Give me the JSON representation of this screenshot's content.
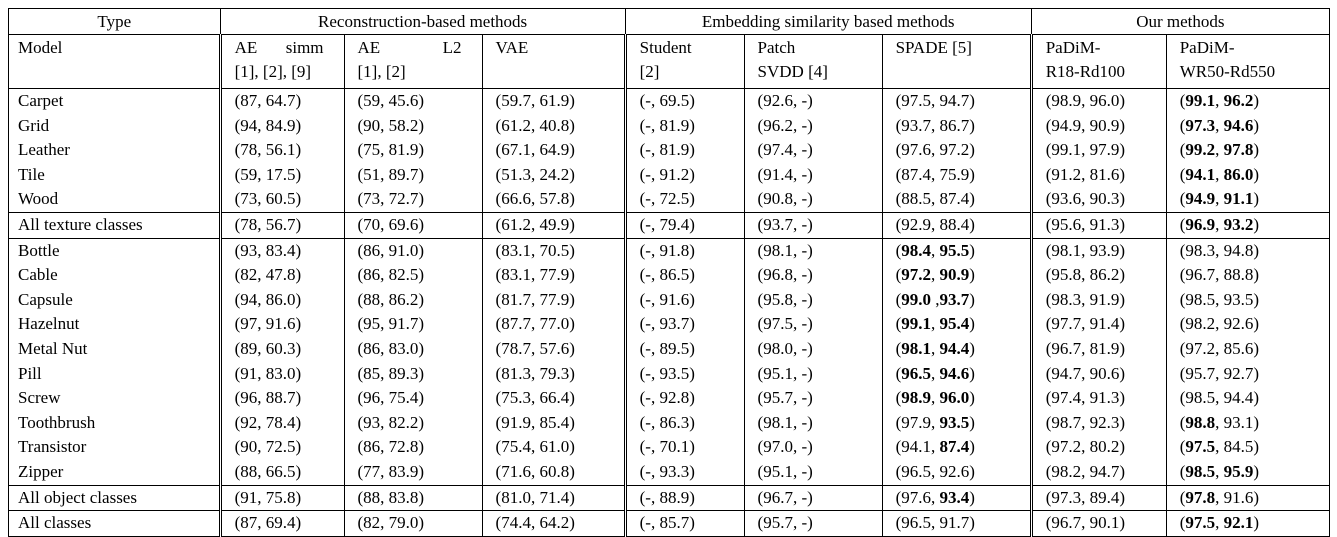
{
  "table": {
    "groups": [
      {
        "label": "Type"
      },
      {
        "label": "Reconstruction-based methods"
      },
      {
        "label": "Embedding similarity based methods"
      },
      {
        "label": "Our methods"
      }
    ],
    "model_label": "Model",
    "columns": [
      {
        "line1": "AE simm",
        "line2": "[1], [2], [9]",
        "justify": true
      },
      {
        "line1": "AE L2",
        "line2": "[1], [2]",
        "justify": true
      },
      {
        "line1": "VAE",
        "line2": "",
        "justify": false
      },
      {
        "line1": "Student",
        "line2": "[2]",
        "justify": false
      },
      {
        "line1": "Patch",
        "line2": "SVDD [4]",
        "justify": false
      },
      {
        "line1": "SPADE [5]",
        "line2": "",
        "justify": false
      },
      {
        "line1": "PaDiM-",
        "line2": "R18-Rd100",
        "justify": false
      },
      {
        "line1": "PaDiM-",
        "line2": "WR50-Rd550",
        "justify": false
      }
    ],
    "rows": [
      {
        "label": "Carpet",
        "section_end": false,
        "cells": [
          "(87, 64.7)",
          "(59, 45.6)",
          "(59.7, 61.9)",
          "(-, 69.5)",
          "(92.6, -)",
          "(97.5, 94.7)",
          "(98.9, 96.0)",
          "(*99.1*, *96.2*)"
        ]
      },
      {
        "label": "Grid",
        "section_end": false,
        "cells": [
          "(94, 84.9)",
          "(90, 58.2)",
          "(61.2, 40.8)",
          "(-, 81.9)",
          "(96.2, -)",
          "(93.7, 86.7)",
          "(94.9, 90.9)",
          "(*97.3*, *94.6*)"
        ]
      },
      {
        "label": "Leather",
        "section_end": false,
        "cells": [
          "(78, 56.1)",
          "(75, 81.9)",
          "(67.1, 64.9)",
          "(-, 81.9)",
          "(97.4, -)",
          "(97.6, 97.2)",
          "(99.1, 97.9)",
          "(*99.2*, *97.8*)"
        ]
      },
      {
        "label": "Tile",
        "section_end": false,
        "cells": [
          "(59, 17.5)",
          "(51, 89.7)",
          "(51.3, 24.2)",
          "(-, 91.2)",
          "(91.4, -)",
          "(87.4, 75.9)",
          "(91.2, 81.6)",
          "(*94.1*, *86.0*)"
        ]
      },
      {
        "label": "Wood",
        "section_end": true,
        "cells": [
          "(73, 60.5)",
          "(73, 72.7)",
          "(66.6, 57.8)",
          "(-, 72.5)",
          "(90.8, -)",
          "(88.5, 87.4)",
          "(93.6, 90.3)",
          "(*94.9*, *91.1*)"
        ]
      },
      {
        "label": "All texture classes",
        "section_end": true,
        "cells": [
          "(78, 56.7)",
          "(70, 69.6)",
          "(61.2, 49.9)",
          "(-, 79.4)",
          "(93.7, -)",
          "(92.9, 88.4)",
          "(95.6, 91.3)",
          "(*96.9*, *93.2*)"
        ]
      },
      {
        "label": "Bottle",
        "section_end": false,
        "cells": [
          "(93, 83.4)",
          "(86, 91.0)",
          "(83.1, 70.5)",
          "(-, 91.8)",
          "(98.1, -)",
          "(*98.4*, *95.5*)",
          "(98.1, 93.9)",
          "(98.3, 94.8)"
        ]
      },
      {
        "label": "Cable",
        "section_end": false,
        "cells": [
          "(82, 47.8)",
          "(86, 82.5)",
          "(83.1, 77.9)",
          "(-, 86.5)",
          "(96.8, -)",
          "(*97.2*, *90.9*)",
          "(95.8, 86.2)",
          "(96.7, 88.8)"
        ]
      },
      {
        "label": "Capsule",
        "section_end": false,
        "cells": [
          "(94, 86.0)",
          "(88, 86.2)",
          "(81.7, 77.9)",
          "(-, 91.6)",
          "(95.8, -)",
          "(*99.0* ,*93.7*)",
          "(98.3, 91.9)",
          "(98.5, 93.5)"
        ]
      },
      {
        "label": "Hazelnut",
        "section_end": false,
        "cells": [
          "(97, 91.6)",
          "(95, 91.7)",
          "(87.7, 77.0)",
          "(-, 93.7)",
          "(97.5, -)",
          "(*99.1*, *95.4*)",
          "(97.7, 91.4)",
          "(98.2, 92.6)"
        ]
      },
      {
        "label": "Metal Nut",
        "section_end": false,
        "cells": [
          "(89, 60.3)",
          "(86, 83.0)",
          "(78.7, 57.6)",
          "(-, 89.5)",
          "(98.0, -)",
          "(*98.1*, *94.4*)",
          "(96.7, 81.9)",
          "(97.2, 85.6)"
        ]
      },
      {
        "label": "Pill",
        "section_end": false,
        "cells": [
          "(91, 83.0)",
          "(85, 89.3)",
          "(81.3, 79.3)",
          "(-, 93.5)",
          "(95.1, -)",
          "(*96.5*, *94.6*)",
          "(94.7, 90.6)",
          "(95.7, 92.7)"
        ]
      },
      {
        "label": "Screw",
        "section_end": false,
        "cells": [
          "(96, 88.7)",
          "(96, 75.4)",
          "(75.3, 66.4)",
          "(-, 92.8)",
          "(95.7, -)",
          "(*98.9*, *96.0*)",
          "(97.4, 91.3)",
          "(98.5, 94.4)"
        ]
      },
      {
        "label": "Toothbrush",
        "section_end": false,
        "cells": [
          "(92, 78.4)",
          "(93, 82.2)",
          "(91.9, 85.4)",
          "(-, 86.3)",
          "(98.1, -)",
          "(97.9, *93.5*)",
          "(98.7, 92.3)",
          "(*98.8*, 93.1)"
        ]
      },
      {
        "label": "Transistor",
        "section_end": false,
        "cells": [
          "(90, 72.5)",
          "(86, 72.8)",
          "(75.4, 61.0)",
          "(-, 70.1)",
          "(97.0, -)",
          "(94.1, *87.4*)",
          "(97.2, 80.2)",
          "(*97.5*, 84.5)"
        ]
      },
      {
        "label": "Zipper",
        "section_end": true,
        "cells": [
          "(88, 66.5)",
          "(77, 83.9)",
          "(71.6, 60.8)",
          "(-, 93.3)",
          "(95.1, -)",
          "(96.5, 92.6)",
          "(98.2, 94.7)",
          "(*98.5*, *95.9*)"
        ]
      },
      {
        "label": "All object classes",
        "section_end": true,
        "cells": [
          "(91, 75.8)",
          "(88, 83.8)",
          "(81.0, 71.4)",
          "(-, 88.9)",
          "(96.7, -)",
          "(97.6, *93.4*)",
          "(97.3, 89.4)",
          "(*97.8*, 91.6)"
        ]
      },
      {
        "label": "All classes",
        "section_end": false,
        "cells": [
          "(87, 69.4)",
          "(82, 79.0)",
          "(74.4, 64.2)",
          "(-, 85.7)",
          "(95.7, -)",
          "(96.5, 91.7)",
          "(96.7, 90.1)",
          "(*97.5*, *92.1*)"
        ]
      }
    ]
  }
}
